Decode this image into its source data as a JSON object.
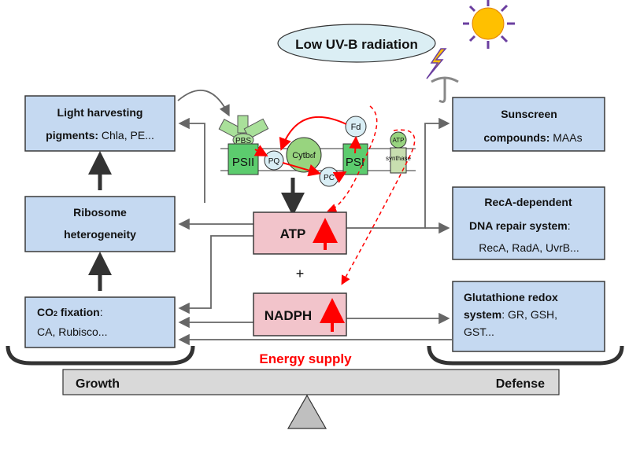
{
  "stimulus": "Low UV-B radiation",
  "left_boxes": {
    "light_harvesting": {
      "title": "Light harvesting",
      "line2_bold": "pigments:",
      "line2": " Chla, PE..."
    },
    "ribosome": {
      "line1": "Ribosome",
      "line2": "heterogeneity"
    },
    "co2": {
      "title_a": "CO",
      "sub": "2",
      "title_b": " fixation",
      "colon": ":",
      "line2": "CA, Rubisco..."
    }
  },
  "right_boxes": {
    "sunscreen": {
      "line1": "Sunscreen",
      "line2_bold": "compounds:",
      "line2": " MAAs"
    },
    "reca": {
      "line1": "RecA-dependent",
      "line2_bold": "DNA repair system",
      "colon": ":",
      "line3": "RecA, RadA, UvrB..."
    },
    "glutathione": {
      "line1": "Glutathione redox",
      "line2_bold": "system",
      "line2": ":  GR, GSH,",
      "line3": "GST..."
    }
  },
  "center": {
    "atp": "ATP",
    "plus": "+",
    "nadph": "NADPH",
    "energy": "Energy supply"
  },
  "photosynthesis": {
    "pbs": "PBS",
    "psii": "PSII",
    "pq": "PQ",
    "cyt_a": "Cytb",
    "cyt_sub": "6",
    "cyt_b": "f",
    "pc": "PC",
    "psi": "PSI",
    "fd": "Fd",
    "atp": "ATP",
    "synthase": "synthase"
  },
  "balance": {
    "left": "Growth",
    "right": "Defense"
  },
  "colors": {
    "box": "#c5d9f1",
    "energy_box": "#f2c4cb",
    "up_arrow": "#ff0000",
    "protein": "#66cc7a",
    "membrane_carrier": "#d9eef5",
    "beam": "#d9d9d9"
  }
}
